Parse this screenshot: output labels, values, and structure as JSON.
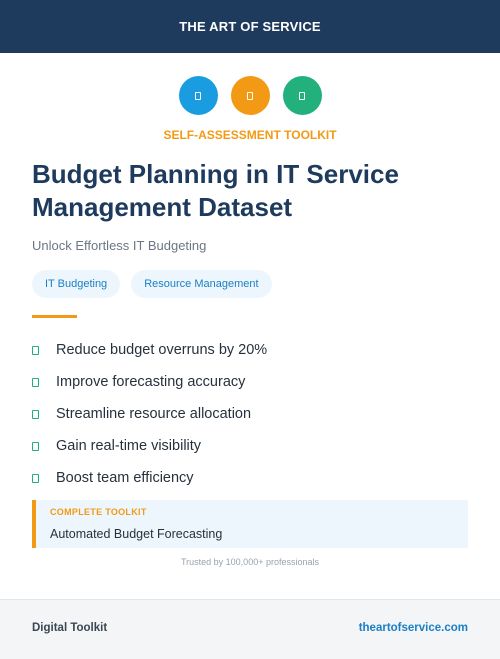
{
  "header": {
    "brand": "THE ART OF SERVICE",
    "background": "#1e3a5c"
  },
  "icons": [
    {
      "name": "document-icon",
      "color": "#1a9de0"
    },
    {
      "name": "document-icon",
      "color": "#f29a13"
    },
    {
      "name": "document-icon",
      "color": "#22b07d"
    }
  ],
  "kicker": "SELF-ASSESSMENT TOOLKIT",
  "title": "Budget Planning in IT Service Management Dataset",
  "subtitle": "Unlock Effortless IT Budgeting",
  "tags": [
    "IT Budgeting",
    "Resource Management"
  ],
  "benefits": [
    "Reduce budget overruns by 20%",
    "Improve forecasting accuracy",
    "Streamline resource allocation",
    "Gain real-time visibility",
    "Boost team efficiency"
  ],
  "toolkit": {
    "label": "COMPLETE TOOLKIT",
    "text": "Automated Budget Forecasting"
  },
  "trust": "Trusted by 100,000+ professionals",
  "footer": {
    "left": "Digital Toolkit",
    "right": "theartofservice.com"
  },
  "colors": {
    "accent": "#f29a13",
    "check": "#22b07d",
    "link": "#1a7fc4"
  }
}
